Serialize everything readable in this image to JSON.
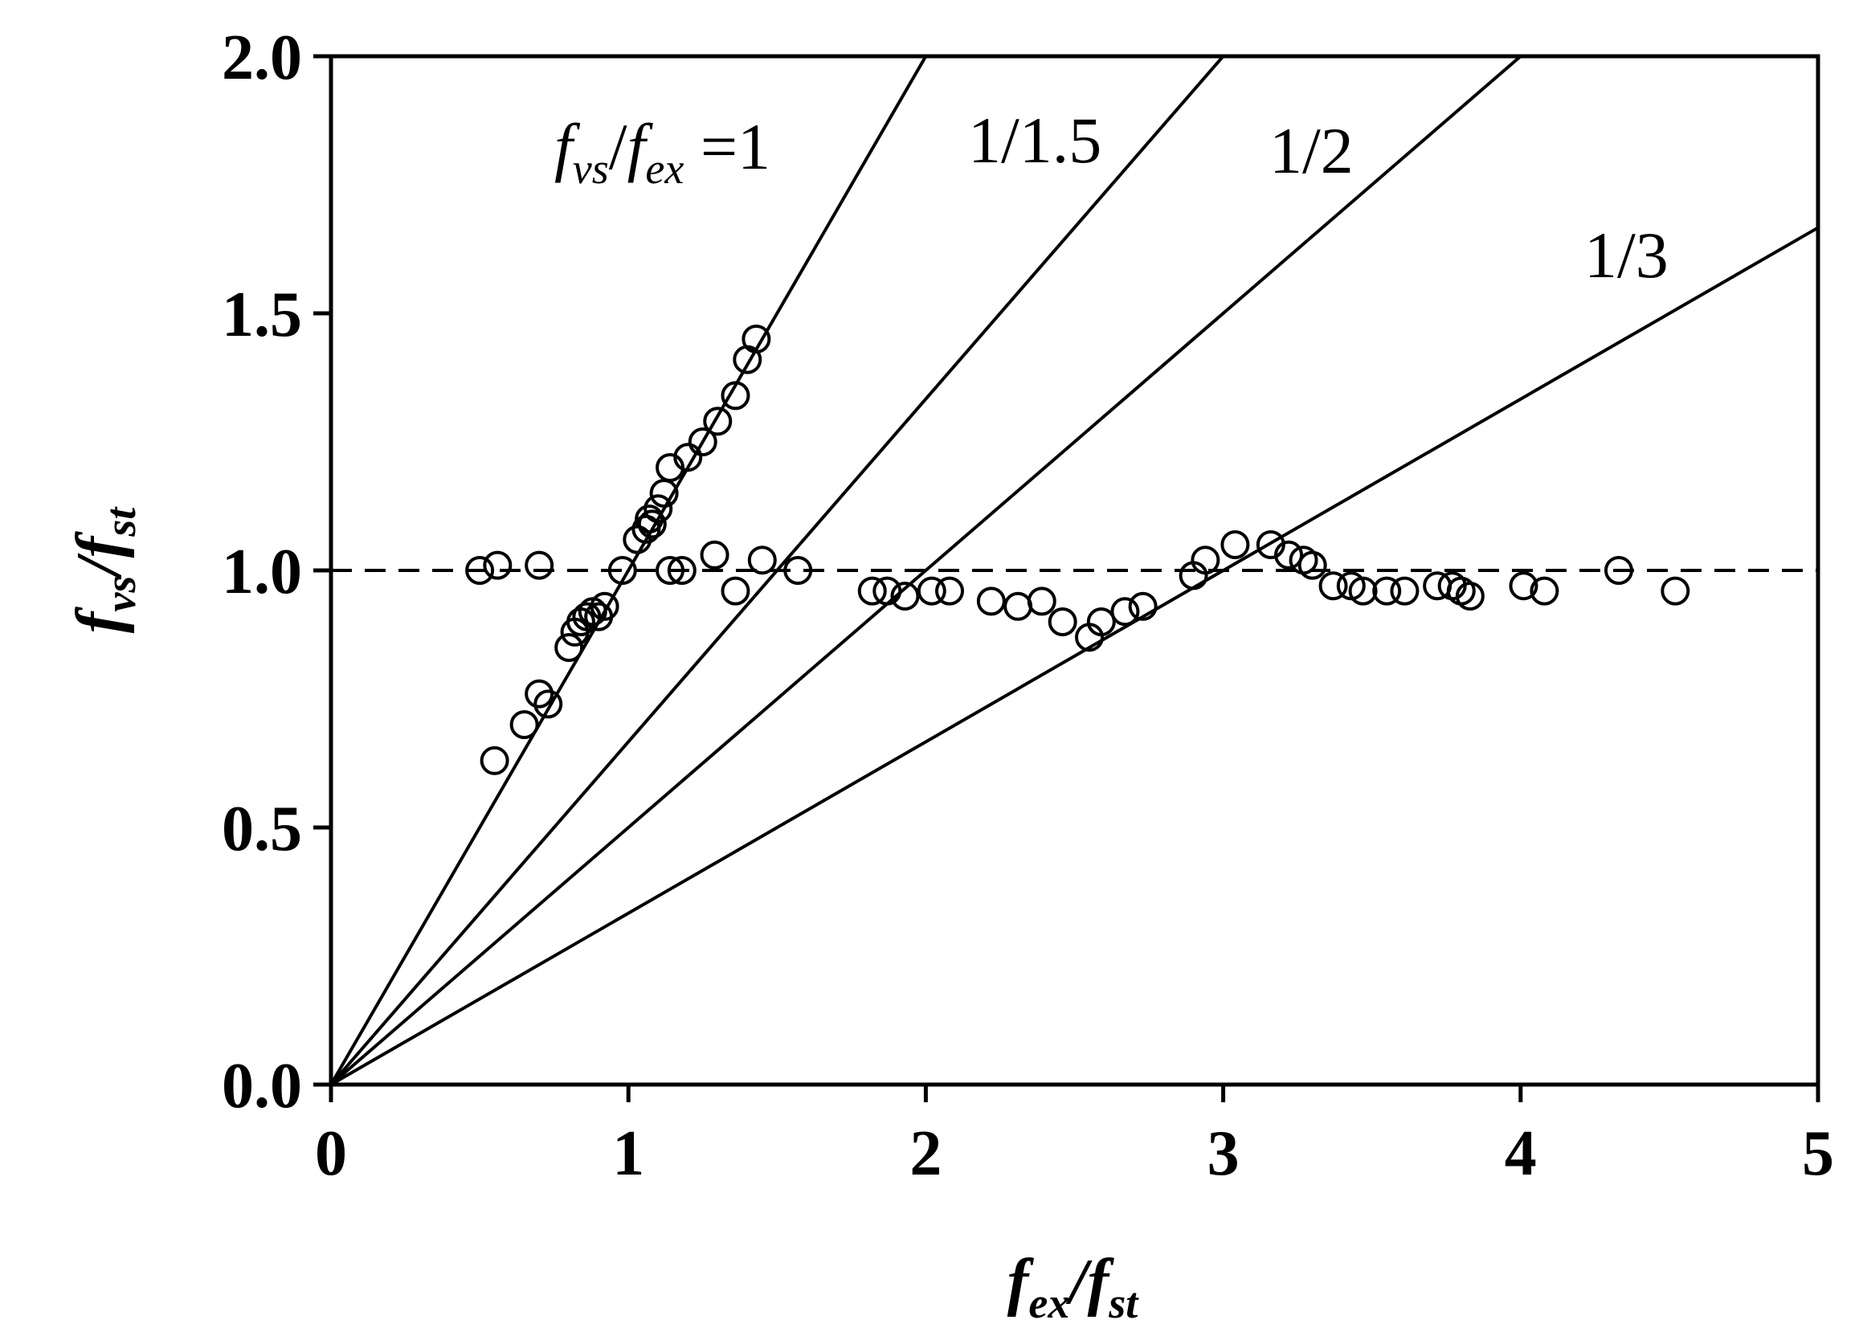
{
  "chart_data": {
    "type": "scatter",
    "title": "",
    "xlabel": {
      "base1": "f",
      "sub1": "ex",
      "sep": "/",
      "base2": "f",
      "sub2": "st"
    },
    "ylabel": {
      "base1": "f",
      "sub1": "vs",
      "sep": "/",
      "base2": "f",
      "sub2": "st"
    },
    "xlim": [
      0,
      5
    ],
    "ylim": [
      0,
      2
    ],
    "xticks": [
      0,
      1,
      2,
      3,
      4,
      5
    ],
    "xtick_labels": [
      "0",
      "1",
      "2",
      "3",
      "4",
      "5"
    ],
    "yticks": [
      0,
      0.5,
      1,
      1.5,
      2
    ],
    "ytick_labels": [
      "0.0",
      "0.5",
      "1.0",
      "1.5",
      "2.0"
    ],
    "grid": false,
    "reference_lines": [
      {
        "kind": "slope",
        "slope": 1,
        "label": "1"
      },
      {
        "kind": "slope",
        "slope": 0.6667,
        "label": "1/1.5"
      },
      {
        "kind": "slope",
        "slope": 0.5,
        "label": "1/2"
      },
      {
        "kind": "slope",
        "slope": 0.3333,
        "label": "1/3"
      },
      {
        "kind": "horizontal",
        "y": 1.0,
        "style": "dashed"
      }
    ],
    "annotation_first": {
      "base1": "f",
      "sub1": "vs",
      "sep": "/",
      "base2": "f",
      "sub2": "ex",
      "eq": " =1"
    },
    "series": [
      {
        "marker": "open-circle",
        "x": [
          0.5,
          0.56,
          0.7,
          0.55,
          0.65,
          0.7,
          0.73,
          0.8,
          0.82,
          0.84,
          0.86,
          0.88,
          0.9,
          0.92,
          0.98,
          1.03,
          1.06,
          1.07,
          1.1,
          1.12,
          1.08,
          1.14,
          1.2,
          1.25,
          1.3,
          1.36,
          1.4,
          1.43,
          1.14,
          1.18,
          1.29,
          1.36,
          1.45,
          1.57,
          1.82,
          1.87,
          1.93,
          2.02,
          2.08,
          2.22,
          2.31,
          2.39,
          2.46,
          2.55,
          2.59,
          2.67,
          2.73,
          2.9,
          2.94,
          3.04,
          3.16,
          3.22,
          3.27,
          3.3,
          3.37,
          3.43,
          3.47,
          3.55,
          3.61,
          3.72,
          3.77,
          3.8,
          3.83,
          4.01,
          4.08,
          4.33,
          4.52
        ],
        "y": [
          1.0,
          1.01,
          1.01,
          0.63,
          0.7,
          0.76,
          0.74,
          0.85,
          0.88,
          0.9,
          0.91,
          0.92,
          0.91,
          0.93,
          1.0,
          1.06,
          1.08,
          1.1,
          1.12,
          1.15,
          1.09,
          1.2,
          1.22,
          1.25,
          1.29,
          1.34,
          1.41,
          1.45,
          1.0,
          1.0,
          1.03,
          0.96,
          1.02,
          1.0,
          0.96,
          0.96,
          0.95,
          0.96,
          0.96,
          0.94,
          0.93,
          0.94,
          0.9,
          0.87,
          0.9,
          0.92,
          0.93,
          0.99,
          1.02,
          1.05,
          1.05,
          1.03,
          1.02,
          1.01,
          0.97,
          0.97,
          0.96,
          0.96,
          0.96,
          0.97,
          0.97,
          0.96,
          0.95,
          0.97,
          0.96,
          1.0,
          0.96
        ]
      }
    ]
  }
}
